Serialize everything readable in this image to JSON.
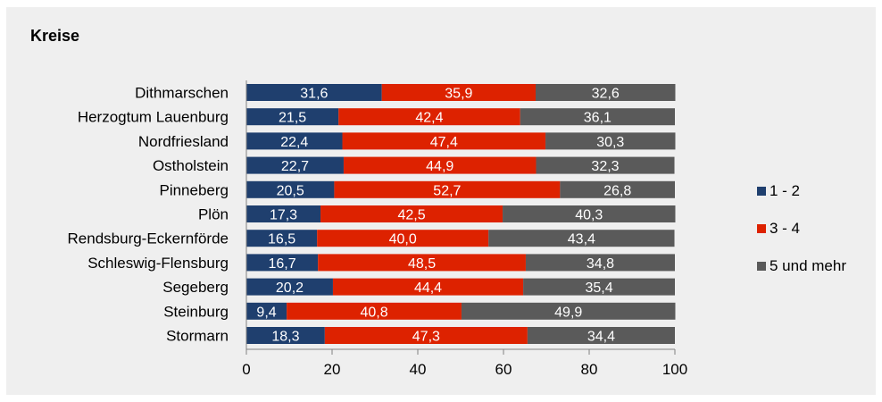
{
  "title": "Kreise",
  "chart_data": {
    "type": "bar",
    "orientation": "horizontal",
    "stacked": true,
    "categories": [
      "Dithmarschen",
      "Herzogtum Lauenburg",
      "Nordfriesland",
      "Ostholstein",
      "Pinneberg",
      "Plön",
      "Rendsburg-Eckernförde",
      "Schleswig-Flensburg",
      "Segeberg",
      "Steinburg",
      "Stormarn"
    ],
    "series": [
      {
        "name": "1 - 2",
        "color": "#1f3f6e",
        "values": [
          31.6,
          21.5,
          22.4,
          22.7,
          20.5,
          17.3,
          16.5,
          16.7,
          20.2,
          9.4,
          18.3
        ],
        "labels": [
          "31,6",
          "21,5",
          "22,4",
          "22,7",
          "20,5",
          "17,3",
          "16,5",
          "16,7",
          "20,2",
          "9,4",
          "18,3"
        ]
      },
      {
        "name": "3 - 4",
        "color": "#dd2200",
        "values": [
          35.9,
          42.4,
          47.4,
          44.9,
          52.7,
          42.5,
          40.0,
          48.5,
          44.4,
          40.8,
          47.3
        ],
        "labels": [
          "35,9",
          "42,4",
          "47,4",
          "44,9",
          "52,7",
          "42,5",
          "40,0",
          "48,5",
          "44,4",
          "40,8",
          "47,3"
        ]
      },
      {
        "name": "5 und mehr",
        "color": "#5a5a5a",
        "values": [
          32.6,
          36.1,
          30.3,
          32.3,
          26.8,
          40.3,
          43.4,
          34.8,
          35.4,
          49.9,
          34.4
        ],
        "labels": [
          "32,6",
          "36,1",
          "30,3",
          "32,3",
          "26,8",
          "40,3",
          "43,4",
          "34,8",
          "35,4",
          "49,9",
          "34,4"
        ]
      }
    ],
    "xlim": [
      0,
      100
    ],
    "xticks": [
      "0",
      "20",
      "40",
      "60",
      "80",
      "100"
    ],
    "grid": false,
    "legend_position": "right"
  }
}
